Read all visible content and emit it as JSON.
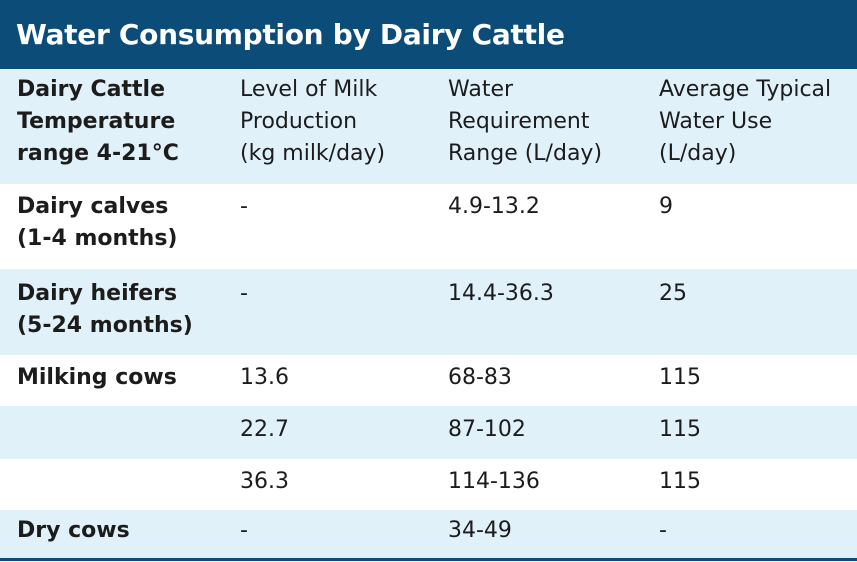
{
  "title": "Water Consumption by Dairy Cattle",
  "colors": {
    "header_bg": "#0c4c79",
    "shaded_row": "#e1f1fa",
    "text": "#1c1c1c"
  },
  "columns": [
    "Dairy Cattle\nTemperature\nrange 4-21°C",
    "Level of Milk\nProduction\n(kg milk/day)",
    "Water\nRequirement\nRange (L/day)",
    "Average Typical\nWater Use\n(L/day)"
  ],
  "rows": [
    [
      "Dairy calves\n(1-4 months)",
      "-",
      "4.9-13.2",
      "9"
    ],
    [
      "Dairy heifers\n(5-24 months)",
      "-",
      "14.4-36.3",
      "25"
    ],
    [
      "Milking cows",
      "13.6",
      "68-83",
      "115"
    ],
    [
      "",
      "22.7",
      "87-102",
      "115"
    ],
    [
      "",
      "36.3",
      "114-136",
      "115"
    ],
    [
      "Dry cows",
      "-",
      "34-49",
      "-"
    ]
  ]
}
